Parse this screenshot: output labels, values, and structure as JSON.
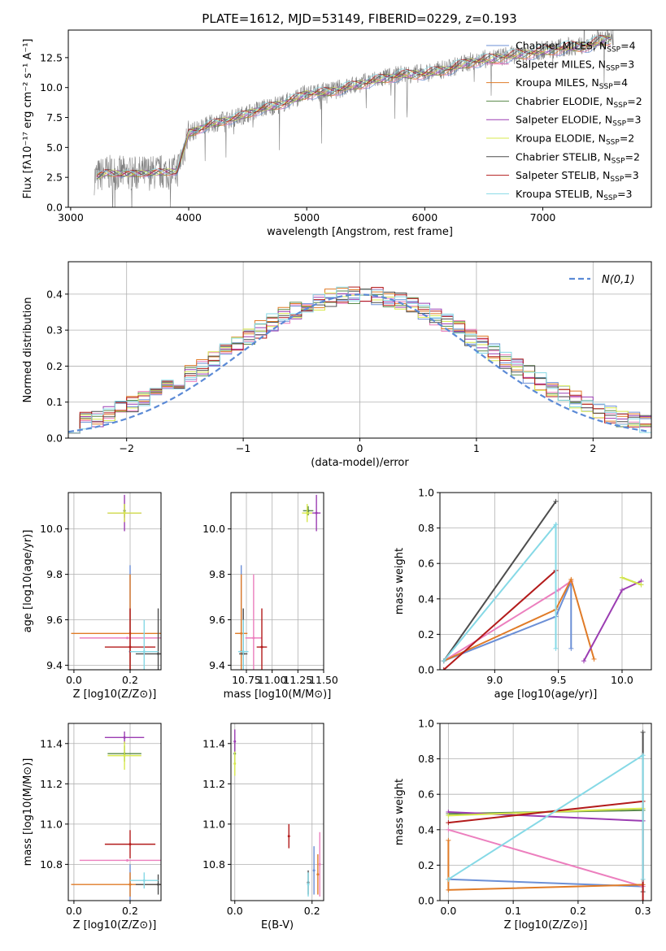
{
  "colors": {
    "cmiles": "#6b8fd6",
    "smiles": "#ec7fbe",
    "kmiles": "#e07b27",
    "celodie": "#5a8a4a",
    "selodie": "#9b3db2",
    "kelodie": "#d7e84c",
    "cstelib": "#4d4d4d",
    "sstelib": "#b31b1b",
    "kstelib": "#86d9e6",
    "spectrum": "#808080",
    "normal": "#5b8ad6"
  },
  "models": [
    {
      "key": "cmiles",
      "label": "Chabrier MILES, N",
      "sub": "SSP",
      "tail": "=4"
    },
    {
      "key": "smiles",
      "label": "Salpeter MILES, N",
      "sub": "SSP",
      "tail": "=3"
    },
    {
      "key": "kmiles",
      "label": "Kroupa MILES, N",
      "sub": "SSP",
      "tail": "=4"
    },
    {
      "key": "celodie",
      "label": "Chabrier ELODIE, N",
      "sub": "SSP",
      "tail": "=2"
    },
    {
      "key": "selodie",
      "label": "Salpeter ELODIE, N",
      "sub": "SSP",
      "tail": "=3"
    },
    {
      "key": "kelodie",
      "label": "Kroupa ELODIE, N",
      "sub": "SSP",
      "tail": "=2"
    },
    {
      "key": "cstelib",
      "label": "Chabrier STELIB, N",
      "sub": "SSP",
      "tail": "=2"
    },
    {
      "key": "sstelib",
      "label": "Salpeter STELIB, N",
      "sub": "SSP",
      "tail": "=3"
    },
    {
      "key": "kstelib",
      "label": "Kroupa STELIB, N",
      "sub": "SSP",
      "tail": "=3"
    }
  ],
  "chart_data": [
    {
      "type": "line",
      "title": "PLATE=1612, MJD=53149, FIBERID=0229, z=0.193",
      "xlabel": "wavelength [Angstrom, rest frame]",
      "ylabel": "Flux [fλ10⁻¹⁷ erg cm⁻² s⁻¹ A⁻¹]",
      "xlim": [
        2980,
        7920
      ],
      "ylim": [
        0,
        14.8
      ],
      "xticks": [
        3000,
        4000,
        5000,
        6000,
        7000
      ],
      "yticks": [
        0.0,
        2.5,
        5.0,
        7.5,
        10.0,
        12.5
      ],
      "continuum": [
        [
          3200,
          2.5
        ],
        [
          3300,
          2.9
        ],
        [
          3500,
          2.8
        ],
        [
          3700,
          2.9
        ],
        [
          3900,
          3.0
        ],
        [
          4000,
          6.2
        ],
        [
          4200,
          7.0
        ],
        [
          4400,
          7.5
        ],
        [
          4600,
          8.2
        ],
        [
          4800,
          8.7
        ],
        [
          5000,
          9.5
        ],
        [
          5200,
          9.7
        ],
        [
          5400,
          10.2
        ],
        [
          5600,
          10.7
        ],
        [
          5800,
          11.1
        ],
        [
          6000,
          11.2
        ],
        [
          6200,
          11.6
        ],
        [
          6400,
          12.2
        ],
        [
          6600,
          12.5
        ],
        [
          6800,
          12.8
        ],
        [
          7000,
          13.1
        ],
        [
          7200,
          13.4
        ],
        [
          7400,
          13.6
        ],
        [
          7500,
          14.0
        ],
        [
          7600,
          14.1
        ]
      ]
    },
    {
      "type": "area",
      "xlabel": "(data-model)/error",
      "ylabel": "Normed distribution",
      "xlim": [
        -2.5,
        2.5
      ],
      "ylim": [
        0,
        0.49
      ],
      "xticks": [
        -2,
        -1,
        0,
        1,
        2
      ],
      "yticks": [
        0.0,
        0.1,
        0.2,
        0.3,
        0.4
      ],
      "legend": "N(0,1)",
      "bin_width": 0.1
    },
    {
      "type": "scatter",
      "xlabel": "Z [log10(Z/Z⊙)]",
      "ylabel": "age  [log10(age/yr)]",
      "xlim": [
        -0.02,
        0.31
      ],
      "ylim": [
        9.38,
        10.16
      ],
      "xticks": [
        0.0,
        0.2
      ],
      "yticks": [
        9.4,
        9.6,
        9.8,
        10.0
      ],
      "points": [
        {
          "key": "cmiles",
          "x": 0.2,
          "y": 9.46,
          "xe": 0.0,
          "ye": 0.38
        },
        {
          "key": "smiles",
          "x": 0.19,
          "y": 9.52,
          "xe": 0.17,
          "ye": 0.0
        },
        {
          "key": "kmiles",
          "x": 0.2,
          "y": 9.54,
          "xe": 0.21,
          "ye": 0.26
        },
        {
          "key": "celodie",
          "x": 0.18,
          "y": 10.08,
          "xe": 0.0,
          "ye": 0.03
        },
        {
          "key": "selodie",
          "x": 0.18,
          "y": 10.07,
          "xe": 0.06,
          "ye": 0.08
        },
        {
          "key": "kelodie",
          "x": 0.18,
          "y": 10.07,
          "xe": 0.06,
          "ye": 0.04
        },
        {
          "key": "cstelib",
          "x": 0.3,
          "y": 9.45,
          "xe": 0.08,
          "ye": 0.2
        },
        {
          "key": "sstelib",
          "x": 0.2,
          "y": 9.48,
          "xe": 0.09,
          "ye": 0.17
        },
        {
          "key": "kstelib",
          "x": 0.25,
          "y": 9.46,
          "xe": 0.05,
          "ye": 0.14
        }
      ]
    },
    {
      "type": "scatter",
      "xlabel": "mass [log10(M/M⊙)]",
      "ylabel": "",
      "xlim": [
        10.6,
        11.5
      ],
      "ylim": [
        9.38,
        10.16
      ],
      "xticks": [
        10.75,
        11.0,
        11.25,
        11.5
      ],
      "yticks": [
        9.4,
        9.6,
        9.8,
        10.0
      ],
      "points": [
        {
          "key": "cmiles",
          "x": 10.7,
          "y": 9.46,
          "xe": 0.02,
          "ye": 0.38
        },
        {
          "key": "smiles",
          "x": 10.82,
          "y": 9.52,
          "xe": 0.08,
          "ye": 0.28
        },
        {
          "key": "kmiles",
          "x": 10.7,
          "y": 9.54,
          "xe": 0.06,
          "ye": 0.26
        },
        {
          "key": "celodie",
          "x": 11.35,
          "y": 10.08,
          "xe": 0.05,
          "ye": 0.02
        },
        {
          "key": "selodie",
          "x": 11.43,
          "y": 10.07,
          "xe": 0.04,
          "ye": 0.08
        },
        {
          "key": "kelodie",
          "x": 11.34,
          "y": 10.07,
          "xe": 0.05,
          "ye": 0.04
        },
        {
          "key": "cstelib",
          "x": 10.72,
          "y": 9.45,
          "xe": 0.04,
          "ye": 0.2
        },
        {
          "key": "sstelib",
          "x": 10.9,
          "y": 9.48,
          "xe": 0.05,
          "ye": 0.17
        },
        {
          "key": "kstelib",
          "x": 10.72,
          "y": 9.46,
          "xe": 0.05,
          "ye": 0.14
        }
      ]
    },
    {
      "type": "line",
      "xlabel": "age  [log10(age/yr)]",
      "ylabel": "mass weight",
      "xlim": [
        8.57,
        10.23
      ],
      "ylim": [
        0,
        1
      ],
      "xticks": [
        9.0,
        9.5,
        10.0
      ],
      "yticks": [
        0.0,
        0.2,
        0.4,
        0.6,
        0.8,
        1.0
      ],
      "series": [
        {
          "key": "cmiles",
          "x": [
            8.6,
            9.48,
            9.6,
            9.6
          ],
          "y": [
            0.05,
            0.3,
            0.5,
            0.12
          ]
        },
        {
          "key": "smiles",
          "x": [
            8.6,
            9.5,
            9.6
          ],
          "y": [
            0.05,
            0.45,
            0.5
          ]
        },
        {
          "key": "kmiles",
          "x": [
            8.6,
            9.48,
            9.6,
            9.78
          ],
          "y": [
            0.05,
            0.34,
            0.51,
            0.06
          ]
        },
        {
          "key": "celodie",
          "x": [
            10.0,
            10.15
          ],
          "y": [
            0.52,
            0.48
          ]
        },
        {
          "key": "selodie",
          "x": [
            9.7,
            10.0,
            10.15
          ],
          "y": [
            0.05,
            0.45,
            0.5
          ]
        },
        {
          "key": "kelodie",
          "x": [
            10.0,
            10.15
          ],
          "y": [
            0.52,
            0.48
          ]
        },
        {
          "key": "cstelib",
          "x": [
            8.6,
            9.48
          ],
          "y": [
            0.05,
            0.95
          ]
        },
        {
          "key": "sstelib",
          "x": [
            8.6,
            9.48
          ],
          "y": [
            0.0,
            0.56
          ]
        },
        {
          "key": "kstelib",
          "x": [
            8.6,
            9.48,
            9.48
          ],
          "y": [
            0.05,
            0.82,
            0.12
          ]
        }
      ]
    },
    {
      "type": "scatter",
      "xlabel": "Z [log10(Z/Z⊙)]",
      "ylabel": "mass [log10(M/M⊙)]",
      "xlim": [
        -0.02,
        0.31
      ],
      "ylim": [
        10.62,
        11.5
      ],
      "xticks": [
        0.0,
        0.2
      ],
      "yticks": [
        10.8,
        11.0,
        11.2,
        11.4
      ],
      "points": [
        {
          "key": "cmiles",
          "x": 0.2,
          "y": 10.7,
          "xe": 0.0,
          "ye": 0.1
        },
        {
          "key": "smiles",
          "x": 0.19,
          "y": 10.82,
          "xe": 0.17,
          "ye": 0.0
        },
        {
          "key": "kmiles",
          "x": 0.2,
          "y": 10.7,
          "xe": 0.21,
          "ye": 0.06
        },
        {
          "key": "celodie",
          "x": 0.18,
          "y": 11.35,
          "xe": 0.06,
          "ye": 0.04
        },
        {
          "key": "selodie",
          "x": 0.18,
          "y": 11.43,
          "xe": 0.07,
          "ye": 0.03
        },
        {
          "key": "kelodie",
          "x": 0.18,
          "y": 11.34,
          "xe": 0.06,
          "ye": 0.07
        },
        {
          "key": "cstelib",
          "x": 0.3,
          "y": 10.7,
          "xe": 0.08,
          "ye": 0.05
        },
        {
          "key": "sstelib",
          "x": 0.2,
          "y": 10.9,
          "xe": 0.09,
          "ye": 0.07
        },
        {
          "key": "kstelib",
          "x": 0.25,
          "y": 10.72,
          "xe": 0.05,
          "ye": 0.04
        }
      ]
    },
    {
      "type": "scatter",
      "xlabel": "E(B-V)",
      "ylabel": "",
      "xlim": [
        -0.01,
        0.23
      ],
      "ylim": [
        10.62,
        11.5
      ],
      "xticks": [
        0.0,
        0.2
      ],
      "yticks": [
        10.8,
        11.0,
        11.2,
        11.4
      ],
      "points": [
        {
          "key": "cmiles",
          "x": 0.205,
          "y": 10.77,
          "xe": 0.0,
          "ye": 0.12
        },
        {
          "key": "smiles",
          "x": 0.22,
          "y": 10.8,
          "xe": 0.0,
          "ye": 0.16
        },
        {
          "key": "kmiles",
          "x": 0.215,
          "y": 10.75,
          "xe": 0.0,
          "ye": 0.1
        },
        {
          "key": "celodie",
          "x": 0.0,
          "y": 11.35,
          "xe": 0.0,
          "ye": 0.05
        },
        {
          "key": "selodie",
          "x": 0.0,
          "y": 11.41,
          "xe": 0.0,
          "ye": 0.06
        },
        {
          "key": "kelodie",
          "x": 0.0,
          "y": 11.3,
          "xe": 0.0,
          "ye": 0.06
        },
        {
          "key": "cstelib",
          "x": 0.19,
          "y": 10.71,
          "xe": 0.0,
          "ye": 0.06
        },
        {
          "key": "sstelib",
          "x": 0.14,
          "y": 10.94,
          "xe": 0.0,
          "ye": 0.06
        },
        {
          "key": "kstelib",
          "x": 0.19,
          "y": 10.7,
          "xe": 0.0,
          "ye": 0.06
        }
      ]
    },
    {
      "type": "line",
      "xlabel": "Z [log10(Z/Z⊙)]",
      "ylabel": "mass weight",
      "xlim": [
        -0.013,
        0.313
      ],
      "ylim": [
        0,
        1
      ],
      "xticks": [
        0.0,
        0.1,
        0.2,
        0.3
      ],
      "yticks": [
        0.0,
        0.2,
        0.4,
        0.6,
        0.8,
        1.0
      ],
      "series": [
        {
          "key": "cmiles",
          "x": [
            0.0,
            0.3
          ],
          "y": [
            0.12,
            0.08
          ]
        },
        {
          "key": "smiles",
          "x": [
            0.0,
            0.3
          ],
          "y": [
            0.4,
            0.08
          ]
        },
        {
          "key": "kmiles",
          "x": [
            0.0,
            0.0,
            0.3
          ],
          "y": [
            0.34,
            0.06,
            0.09
          ]
        },
        {
          "key": "celodie",
          "x": [
            0.0,
            0.3
          ],
          "y": [
            0.49,
            0.51
          ]
        },
        {
          "key": "selodie",
          "x": [
            0.0,
            0.3
          ],
          "y": [
            0.5,
            0.45
          ]
        },
        {
          "key": "kelodie",
          "x": [
            0.0,
            0.3
          ],
          "y": [
            0.48,
            0.52
          ]
        },
        {
          "key": "cstelib",
          "x": [
            0.3,
            0.3
          ],
          "y": [
            0.95,
            0.05
          ]
        },
        {
          "key": "sstelib",
          "x": [
            0.0,
            0.3,
            0.3
          ],
          "y": [
            0.44,
            0.56,
            0.0
          ]
        },
        {
          "key": "kstelib",
          "x": [
            0.0,
            0.3,
            0.3
          ],
          "y": [
            0.12,
            0.82,
            0.12
          ]
        }
      ]
    }
  ]
}
